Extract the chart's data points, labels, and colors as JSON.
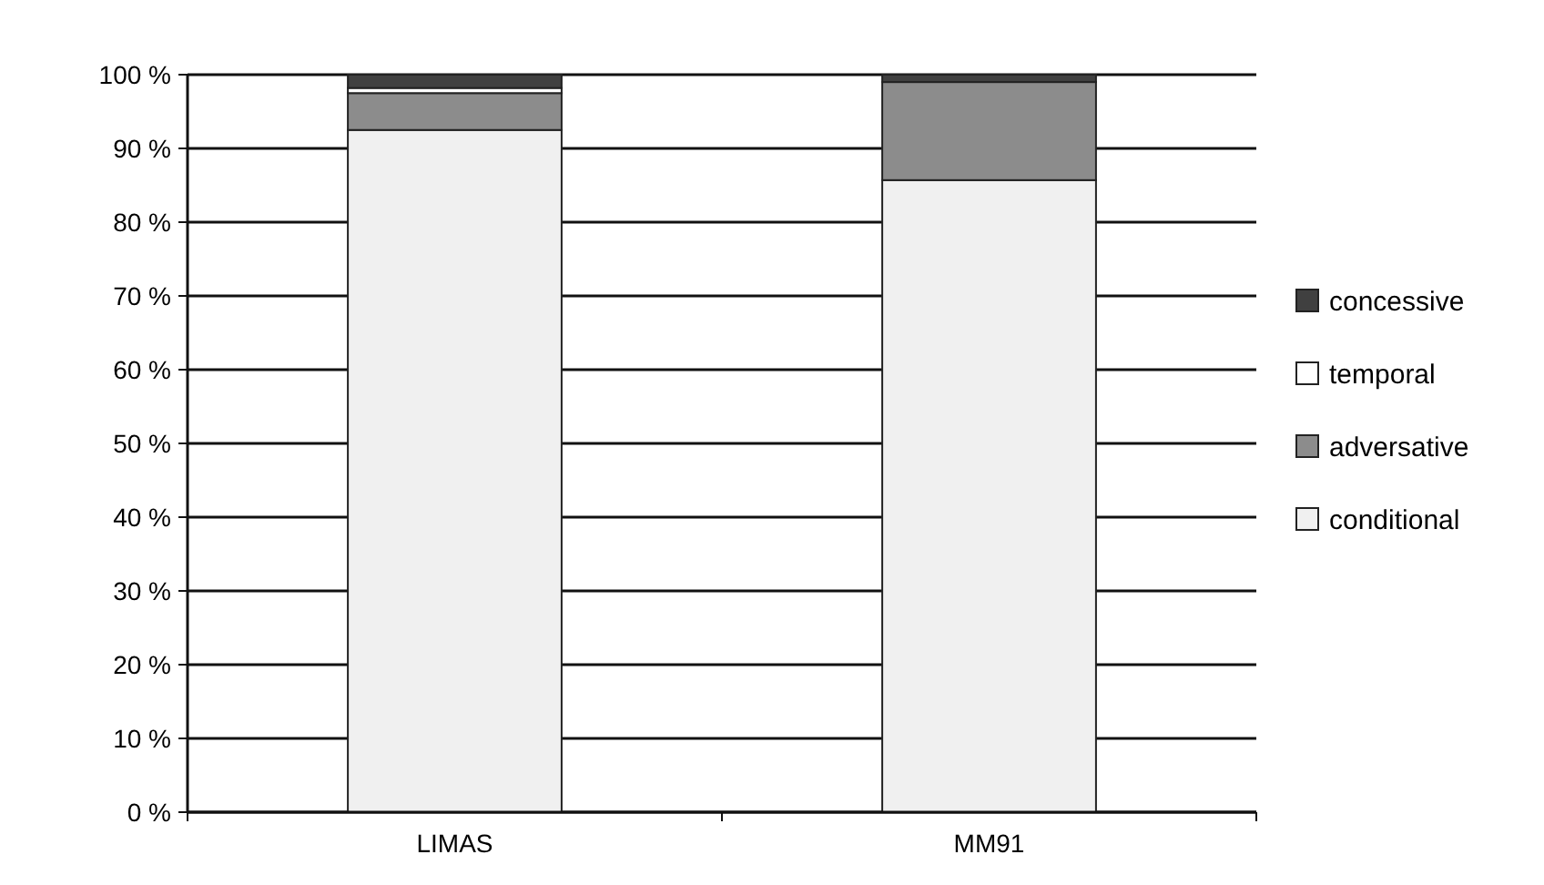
{
  "chart_data": {
    "type": "bar",
    "stacked": true,
    "categories": [
      "LIMAS",
      "MM91"
    ],
    "series": [
      {
        "name": "conditional",
        "color": "#f0f0f0",
        "values": [
          92.5,
          85.7
        ]
      },
      {
        "name": "adversative",
        "color": "#8c8c8c",
        "values": [
          5,
          13.3
        ]
      },
      {
        "name": "temporal",
        "color": "#ffffff",
        "values": [
          0.7,
          0
        ]
      },
      {
        "name": "concessive",
        "color": "#404040",
        "values": [
          1.8,
          1
        ]
      }
    ],
    "ylim": [
      0,
      100
    ],
    "yticks": [
      {
        "value": 0,
        "label": "0 %"
      },
      {
        "value": 10,
        "label": "10 %"
      },
      {
        "value": 20,
        "label": "20 %"
      },
      {
        "value": 30,
        "label": "30 %"
      },
      {
        "value": 40,
        "label": "40 %"
      },
      {
        "value": 50,
        "label": "50 %"
      },
      {
        "value": 60,
        "label": "60 %"
      },
      {
        "value": 70,
        "label": "70 %"
      },
      {
        "value": 80,
        "label": "80 %"
      },
      {
        "value": 90,
        "label": "90 %"
      },
      {
        "value": 100,
        "label": "100 %"
      }
    ],
    "grid": "y",
    "legend": "right"
  }
}
